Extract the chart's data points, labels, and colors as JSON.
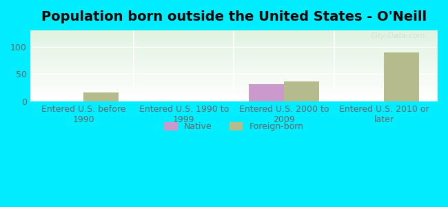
{
  "title": "Population born outside the United States - O'Neill",
  "categories": [
    "Entered U.S. before\n1990",
    "Entered U.S. 1990 to\n1999",
    "Entered U.S. 2000 to\n2009",
    "Entered U.S. 2010 or\nlater"
  ],
  "native_values": [
    0,
    0,
    32,
    0
  ],
  "foreign_born_values": [
    17,
    0,
    37,
    90
  ],
  "native_color": "#cc99cc",
  "foreign_born_color": "#b5bb8a",
  "background_outer": "#00eeff",
  "background_inner_top": "#e8f5e8",
  "background_inner_bottom": "#f5fff5",
  "ylim": [
    0,
    130
  ],
  "yticks": [
    0,
    50,
    100
  ],
  "bar_width": 0.35,
  "title_fontsize": 14,
  "tick_fontsize": 9,
  "legend_labels": [
    "Native",
    "Foreign-born"
  ],
  "watermark": "City-Data.com"
}
